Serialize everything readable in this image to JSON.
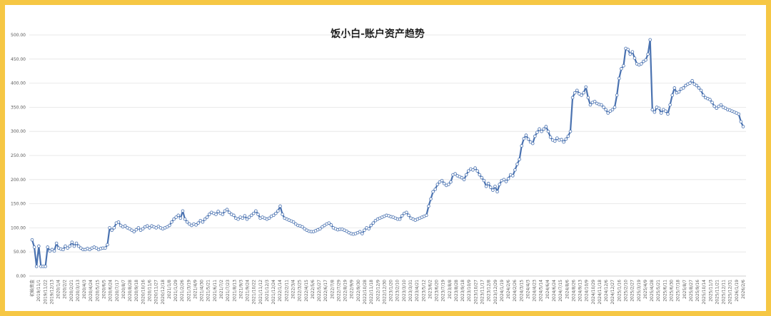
{
  "chart_data": {
    "type": "line",
    "title": "饭小白-账户资产趋势",
    "xlabel": "",
    "ylabel": "",
    "ylim": [
      0,
      500
    ],
    "y_ticks": [
      "0.00",
      "50.00",
      "100.00",
      "150.00",
      "200.00",
      "250.00",
      "300.00",
      "350.00",
      "400.00",
      "450.00",
      "500.00"
    ],
    "grid": true,
    "legend": "none",
    "line_color": "#4a72b0",
    "x_ticks": [
      "初始资金",
      "2019/11/1",
      "2019/11/22",
      "2019/12/13",
      "2020/1/4",
      "2020/2/2",
      "2020/2/21",
      "2020/3/13",
      "2020/4/3",
      "2020/4/24",
      "2020/5/15",
      "2020/6/5",
      "2020/6/24",
      "2020/7/17",
      "2020/8/7",
      "2020/8/28",
      "2020/9/18",
      "2020/10/16",
      "2020/11/6",
      "2020/11/27",
      "2020/12/18",
      "2021/1/8",
      "2021/1/29",
      "2021/2/26",
      "2021/3/19",
      "2021/4/9",
      "2021/4/30",
      "2021/5/21",
      "2021/6/11",
      "2021/7/2",
      "2021/7/23",
      "2021/8/13",
      "2021/9/3",
      "2021/9/24",
      "2021/10/22",
      "2021/11/12",
      "2021/12/3",
      "2021/12/24",
      "2022/1/14",
      "2022/2/11",
      "2022/3/4",
      "2022/3/25",
      "2022/4/15",
      "2022/5/6",
      "2022/5/27",
      "2022/6/17",
      "2022/7/8",
      "2022/7/29",
      "2022/8/19",
      "2022/9/9",
      "2022/9/30",
      "2022/10/28",
      "2022/11/18",
      "2022/12/9",
      "2022/12/30",
      "2023/1/20",
      "2023/2/10",
      "2023/3/10",
      "2023/3/31",
      "2023/4/21",
      "2023/5/12",
      "2023/6/2",
      "2023/6/20",
      "2023/7/19",
      "2023/8/8",
      "2023/8/28",
      "2023/9/18",
      "2023/10/9",
      "2023/10/27",
      "2023/11/17",
      "2023/12/8",
      "2023/12/29",
      "2024/1/19",
      "2024/2/6",
      "2024/2/26",
      "2024/3/15",
      "2024/4/3",
      "2024/4/23",
      "2024/5/14",
      "2024/6/4",
      "2024/6/24",
      "2024/7/15",
      "2024/8/6",
      "2024/8/26",
      "2024/9/13",
      "2024/10/9",
      "2024/10/29",
      "2024/11/18",
      "2024/12/6",
      "2024/12/27",
      "2025/1/16",
      "2025/2/10",
      "2025/2/27",
      "2025/3/19",
      "2025/4/9",
      "2025/4/28",
      "2025/5/21",
      "2025/6/11",
      "2025/6/30",
      "2025/7/18",
      "2025/8/7",
      "2025/8/27",
      "2025/9/16",
      "2025/10/14",
      "2025/11/3",
      "2025/11/21",
      "2025/12/11",
      "2025/12/31",
      "2026/1/19",
      "2026/2/6"
    ],
    "values": [
      75,
      60,
      20,
      62,
      20,
      20,
      20,
      60,
      52,
      55,
      52,
      68,
      58,
      56,
      55,
      62,
      58,
      62,
      70,
      62,
      68,
      62,
      58,
      55,
      55,
      57,
      55,
      58,
      60,
      58,
      55,
      57,
      58,
      58,
      65,
      100,
      95,
      100,
      110,
      112,
      105,
      102,
      104,
      100,
      98,
      95,
      92,
      96,
      100,
      95,
      98,
      102,
      104,
      100,
      104,
      102,
      100,
      103,
      100,
      98,
      100,
      102,
      105,
      112,
      118,
      122,
      126,
      120,
      135,
      118,
      112,
      108,
      105,
      108,
      106,
      110,
      115,
      112,
      118,
      122,
      128,
      132,
      130,
      128,
      134,
      130,
      128,
      135,
      138,
      132,
      128,
      126,
      120,
      118,
      122,
      120,
      125,
      118,
      122,
      126,
      130,
      135,
      128,
      120,
      122,
      120,
      118,
      120,
      124,
      126,
      130,
      135,
      145,
      128,
      120,
      118,
      116,
      114,
      112,
      108,
      105,
      104,
      102,
      98,
      95,
      93,
      92,
      92,
      94,
      96,
      98,
      102,
      105,
      108,
      110,
      106,
      100,
      98,
      96,
      97,
      97,
      95,
      93,
      90,
      88,
      87,
      88,
      90,
      92,
      88,
      95,
      100,
      98,
      105,
      110,
      115,
      118,
      120,
      122,
      124,
      126,
      125,
      123,
      122,
      120,
      118,
      118,
      125,
      130,
      132,
      126,
      120,
      118,
      116,
      118,
      120,
      122,
      124,
      126,
      145,
      160,
      175,
      180,
      190,
      195,
      198,
      192,
      188,
      190,
      195,
      210,
      212,
      208,
      206,
      204,
      200,
      210,
      218,
      222,
      220,
      224,
      218,
      210,
      204,
      198,
      186,
      192,
      184,
      178,
      186,
      175,
      190,
      198,
      200,
      196,
      202,
      210,
      208,
      220,
      232,
      242,
      270,
      285,
      292,
      284,
      278,
      275,
      290,
      298,
      305,
      300,
      305,
      310,
      300,
      288,
      282,
      280,
      286,
      282,
      283,
      278,
      284,
      290,
      300,
      370,
      380,
      385,
      378,
      375,
      380,
      392,
      370,
      355,
      360,
      362,
      358,
      356,
      355,
      350,
      345,
      338,
      342,
      345,
      350,
      375,
      410,
      430,
      436,
      472,
      470,
      460,
      465,
      452,
      440,
      438,
      440,
      445,
      448,
      460,
      490,
      345,
      340,
      350,
      348,
      338,
      345,
      342,
      336,
      355,
      375,
      390,
      380,
      382,
      388,
      390,
      395,
      398,
      400,
      405,
      398,
      395,
      390,
      385,
      375,
      370,
      368,
      366,
      360,
      352,
      348,
      352,
      355,
      350,
      348,
      345,
      344,
      342,
      340,
      338,
      336,
      320,
      310
    ]
  }
}
